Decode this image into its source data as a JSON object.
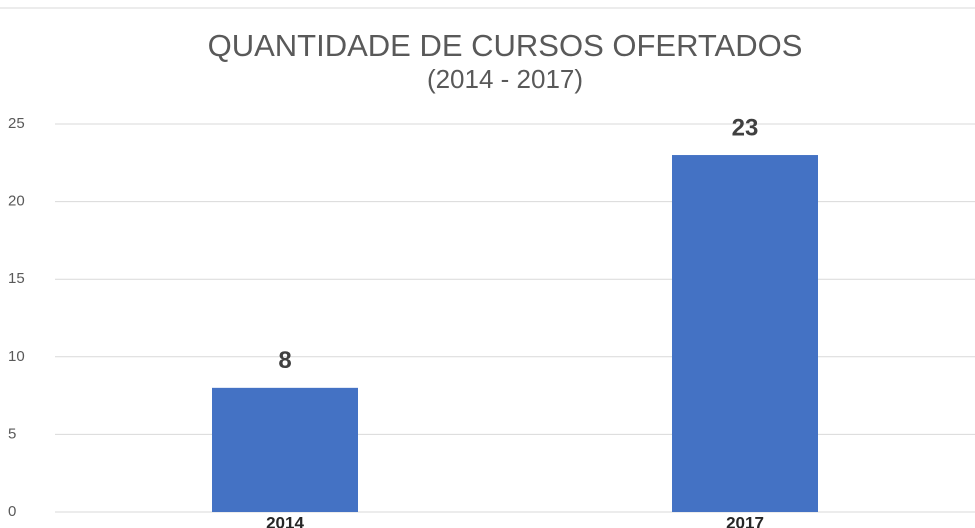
{
  "chart_data": {
    "type": "bar",
    "title": "QUANTIDADE DE CURSOS OFERTADOS",
    "subtitle": "(2014 - 2017)",
    "categories": [
      "2014",
      "2017"
    ],
    "values": [
      8,
      23
    ],
    "color": "#4472c4",
    "ylim": [
      0,
      25
    ],
    "yticks": [
      0,
      5,
      10,
      15,
      20,
      25
    ],
    "grid": true
  }
}
